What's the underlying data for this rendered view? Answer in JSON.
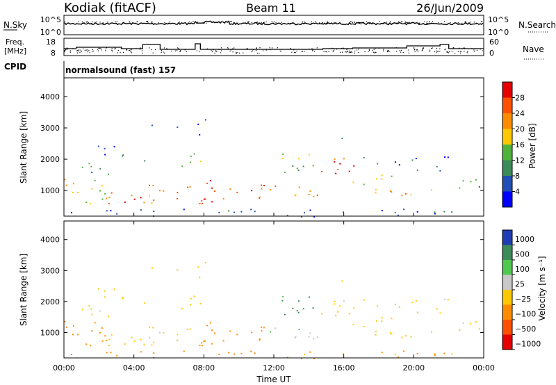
{
  "header": {
    "radar": "Kodiak (fitACF)",
    "beam": "Beam 11",
    "date": "26/Jun/2009"
  },
  "top_panels": {
    "nsky": {
      "label": "N.Sky",
      "ticks": [
        "10^5",
        "10^0"
      ],
      "right_label": "N.Search",
      "right_ticks": [
        "10^5",
        "10^0"
      ]
    },
    "freq": {
      "label_line1": "Freq.",
      "label_line2": "[MHz]",
      "ticks": [
        "18",
        "8"
      ],
      "right_label": "Nave",
      "right_ticks": [
        "60",
        "0"
      ]
    },
    "cpid_label": "CPID",
    "cpid_value": "normalsound (fast) 157"
  },
  "chart_data": [
    {
      "type": "heatmap",
      "ylabel": "Slant Range [km]",
      "ylim": [
        180,
        4600
      ],
      "yticks": [
        "1000",
        "2000",
        "3000",
        "4000"
      ],
      "colorbar": {
        "label": "Power [dB]",
        "ticks": [
          "4",
          "8",
          "12",
          "16",
          "20",
          "24",
          "28"
        ],
        "colors": [
          "#0000ff",
          "#2050b4",
          "#3c8c5a",
          "#50b43c",
          "#ffc800",
          "#ff8c00",
          "#ff5000",
          "#e60000"
        ]
      }
    },
    {
      "type": "heatmap",
      "ylabel": "Slant Range [km]",
      "ylim": [
        180,
        4600
      ],
      "yticks": [
        "1000",
        "2000",
        "3000",
        "4000"
      ],
      "xlabel": "Time UT",
      "xticks": [
        "00:00",
        "04:00",
        "08:00",
        "12:00",
        "16:00",
        "20:00",
        "00:00"
      ],
      "colorbar": {
        "label": "Velocity [m s⁻¹]",
        "ticks": [
          "1000",
          "500",
          "100",
          "25",
          "−25",
          "−100",
          "−500",
          "−1000"
        ],
        "colors": [
          "#1e3cb4",
          "#3c8c5a",
          "#50c850",
          "#c8c8c8",
          "#ffc800",
          "#ff8c00",
          "#ff5000",
          "#e60000"
        ]
      }
    }
  ]
}
